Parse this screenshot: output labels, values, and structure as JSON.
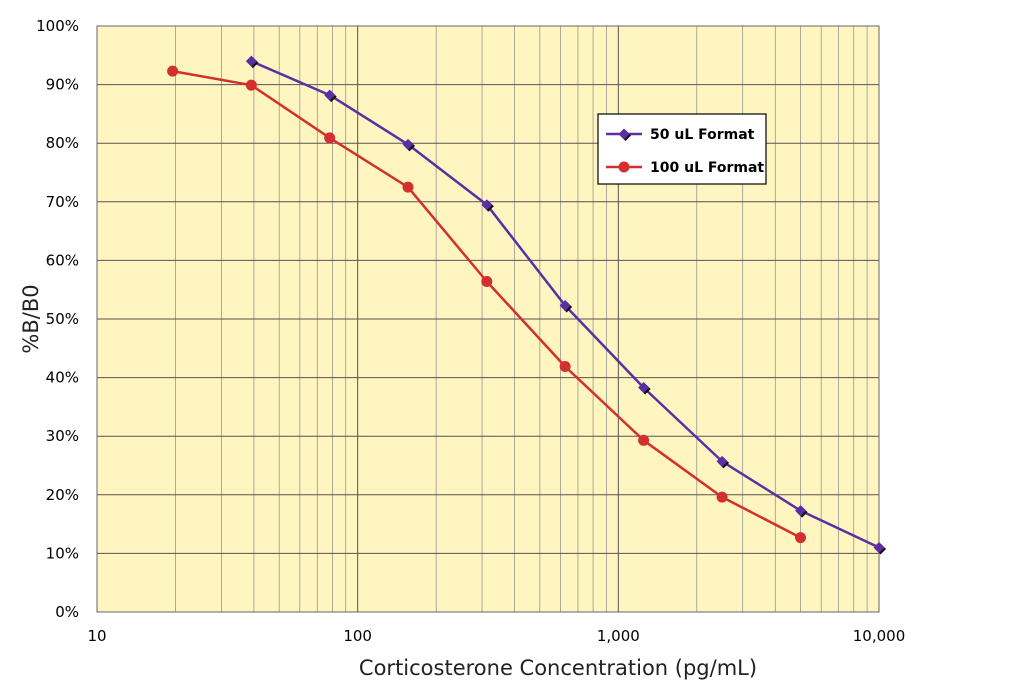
{
  "chart_data": {
    "type": "line",
    "title": "",
    "xlabel": "Corticosterone Concentration (pg/mL)",
    "ylabel": "%B/B0",
    "x_scale": "log",
    "xlim": [
      10,
      10000
    ],
    "ylim": [
      0,
      100
    ],
    "x_ticks": [
      {
        "value": 10,
        "label": "10"
      },
      {
        "value": 100,
        "label": "100"
      },
      {
        "value": 1000,
        "label": "1,000"
      },
      {
        "value": 10000,
        "label": "10,000"
      }
    ],
    "y_ticks": [
      {
        "value": 0,
        "label": "0%"
      },
      {
        "value": 10,
        "label": "10%"
      },
      {
        "value": 20,
        "label": "20%"
      },
      {
        "value": 30,
        "label": "30%"
      },
      {
        "value": 40,
        "label": "40%"
      },
      {
        "value": 50,
        "label": "50%"
      },
      {
        "value": 60,
        "label": "60%"
      },
      {
        "value": 70,
        "label": "70%"
      },
      {
        "value": 80,
        "label": "80%"
      },
      {
        "value": 90,
        "label": "90%"
      },
      {
        "value": 100,
        "label": "100%"
      }
    ],
    "grid": true,
    "legend_position": "top-right",
    "plot_background": "#fff5c0",
    "series": [
      {
        "name": "50 uL Format",
        "color": "#5b2fa3",
        "marker": "diamond",
        "x": [
          39.1,
          78.1,
          156,
          313,
          625,
          1250,
          2500,
          5000,
          10000
        ],
        "y": [
          94,
          88.2,
          79.8,
          69.5,
          52.3,
          38.3,
          25.7,
          17.3,
          11
        ]
      },
      {
        "name": "100 uL Format",
        "color": "#d42f2f",
        "marker": "circle",
        "x": [
          19.5,
          39.1,
          78.1,
          156,
          313,
          625,
          1250,
          2500,
          5000
        ],
        "y": [
          92.3,
          89.9,
          80.9,
          72.5,
          56.4,
          41.9,
          29.3,
          19.6,
          12.7
        ]
      }
    ]
  }
}
